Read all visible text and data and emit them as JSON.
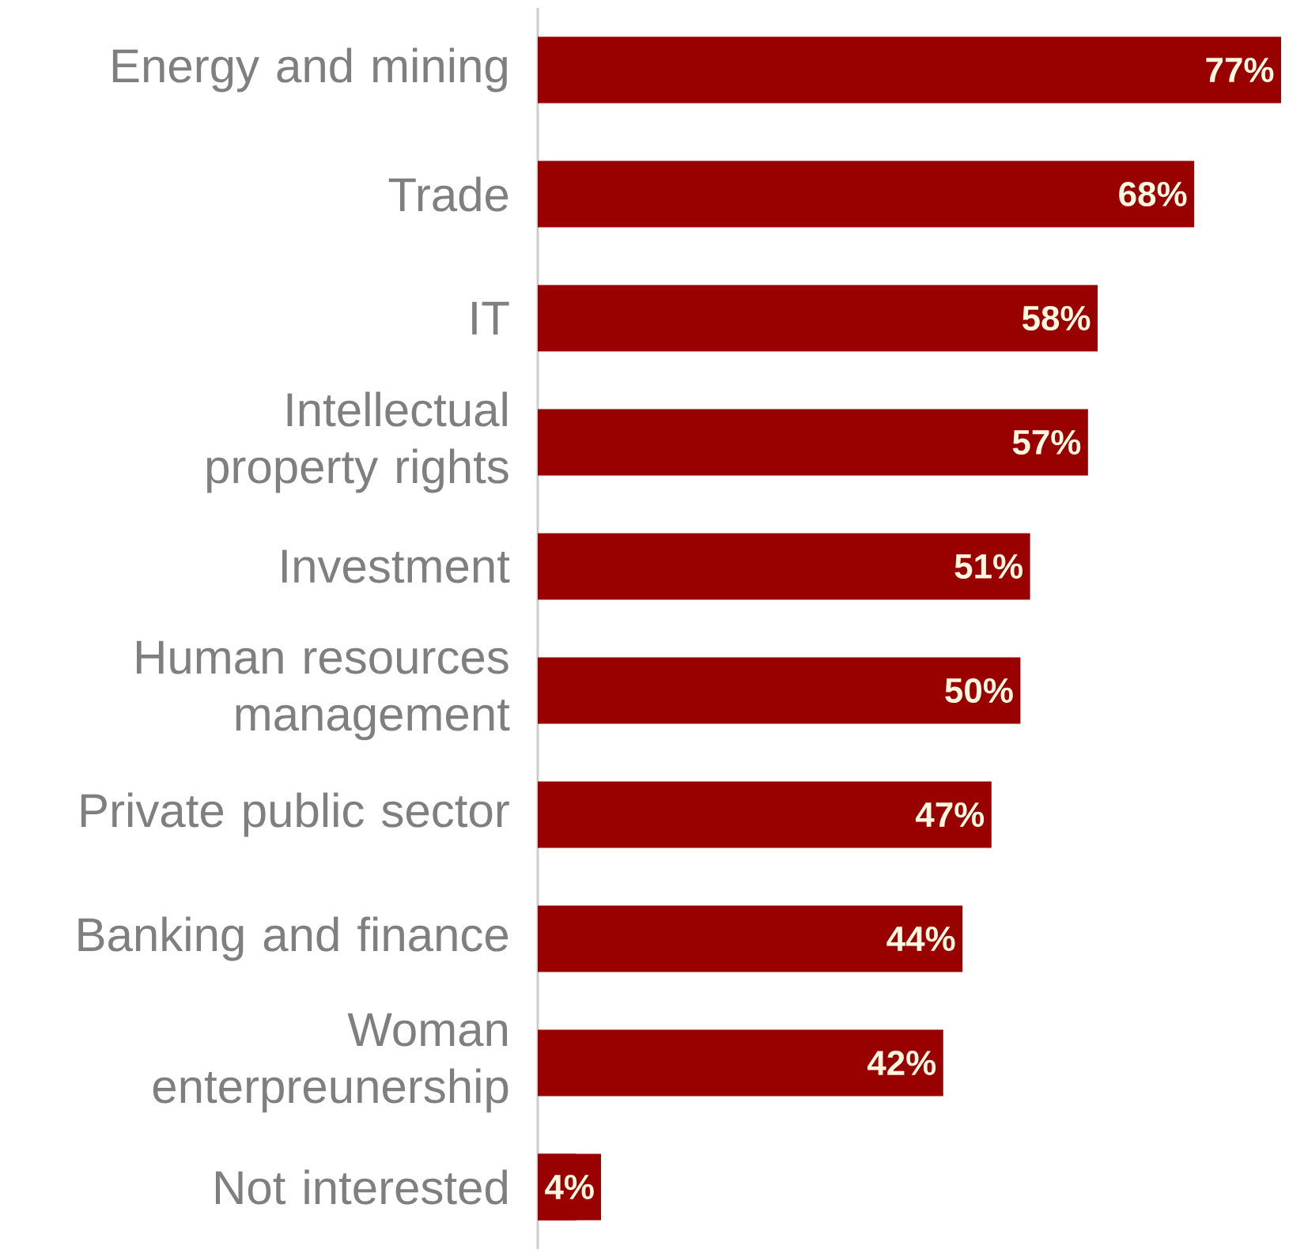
{
  "chart_data": {
    "type": "bar",
    "orientation": "horizontal",
    "categories": [
      "Energy and mining",
      "Trade",
      "IT",
      "Intellectual property rights",
      "Investment",
      "Human resources management",
      "Private public sector",
      "Banking and finance",
      "Woman enterpreunership",
      "Not interested"
    ],
    "values": [
      77,
      68,
      58,
      57,
      51,
      50,
      47,
      44,
      42,
      4
    ],
    "value_labels": [
      "77%",
      "68%",
      "58%",
      "57%",
      "51%",
      "50%",
      "47%",
      "44%",
      "42%",
      "4%"
    ],
    "color": "#990000",
    "tick_labels": "y"
  }
}
